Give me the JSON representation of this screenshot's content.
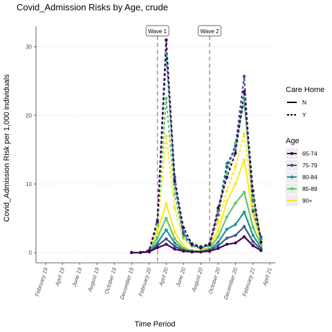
{
  "chart_data": {
    "type": "line",
    "title": "Covid_Admission Risks by Age, crude",
    "xlabel": "Time Period",
    "ylabel": "Covid_Admission Risk per 1,000 individuals",
    "x_tick_labels": [
      "February 19",
      "April 19",
      "June 19",
      "August 19",
      "October 19",
      "December 19",
      "February 20",
      "April 20",
      "June 20",
      "August 20",
      "October 20",
      "December 20",
      "February 21",
      "April 21"
    ],
    "y_ticks": [
      0,
      10,
      20,
      30
    ],
    "ylim": [
      -1.5,
      33
    ],
    "grid": true,
    "annotations": [
      {
        "label": "Wave 1",
        "x": "2020-03-01"
      },
      {
        "label": "Wave 2",
        "x": "2020-09-01"
      }
    ],
    "x": [
      "2019-12-01",
      "2020-01-01",
      "2020-02-01",
      "2020-03-01",
      "2020-04-01",
      "2020-05-01",
      "2020-06-01",
      "2020-07-01",
      "2020-08-01",
      "2020-09-01",
      "2020-10-01",
      "2020-11-01",
      "2020-12-01",
      "2021-01-01",
      "2021-02-01",
      "2021-03-01"
    ],
    "legend": {
      "care_home_title": "Care Home",
      "care_home_entries": [
        {
          "label": "N",
          "linetype": "solid"
        },
        {
          "label": "Y",
          "linetype": "dashed"
        }
      ],
      "age_title": "Age",
      "placement": "right"
    },
    "series": [
      {
        "name": "65-74",
        "care_home": "N",
        "color": "#440154",
        "values": [
          0.0,
          0.0,
          0.1,
          0.7,
          1.2,
          0.5,
          0.2,
          0.1,
          0.1,
          0.2,
          0.6,
          1.2,
          1.4,
          2.3,
          1.0,
          0.3
        ]
      },
      {
        "name": "75-79",
        "care_home": "N",
        "color": "#3b528b",
        "values": [
          0.0,
          0.0,
          0.1,
          1.0,
          2.0,
          0.9,
          0.3,
          0.1,
          0.1,
          0.3,
          1.0,
          2.1,
          2.5,
          3.8,
          1.6,
          0.5
        ]
      },
      {
        "name": "80-84",
        "care_home": "N",
        "color": "#21918c",
        "values": [
          0.0,
          0.0,
          0.1,
          1.4,
          3.3,
          1.4,
          0.4,
          0.2,
          0.1,
          0.4,
          1.5,
          3.4,
          4.1,
          5.9,
          2.5,
          0.7
        ]
      },
      {
        "name": "85-89",
        "care_home": "N",
        "color": "#5ec962",
        "values": [
          0.0,
          0.0,
          0.1,
          2.2,
          5.0,
          2.0,
          0.6,
          0.2,
          0.2,
          0.6,
          2.3,
          5.2,
          7.2,
          8.8,
          3.7,
          1.1
        ]
      },
      {
        "name": "90+",
        "care_home": "N",
        "color": "#fde725",
        "values": [
          0.0,
          0.0,
          0.2,
          3.1,
          7.1,
          3.0,
          0.9,
          0.3,
          0.2,
          0.8,
          3.2,
          7.5,
          10.0,
          13.5,
          5.5,
          1.6
        ]
      },
      {
        "name": "65-74",
        "care_home": "Y",
        "color": "#440154",
        "values": [
          0.0,
          0.0,
          0.3,
          4.6,
          31.0,
          10.4,
          3.6,
          1.2,
          0.7,
          1.2,
          6.5,
          11.0,
          14.5,
          23.5,
          9.0,
          1.5
        ]
      },
      {
        "name": "75-79",
        "care_home": "Y",
        "color": "#3b528b",
        "values": [
          0.0,
          0.0,
          0.3,
          4.4,
          31.0,
          11.0,
          2.8,
          1.3,
          0.9,
          1.3,
          5.5,
          12.5,
          15.5,
          25.7,
          6.0,
          2.3
        ]
      },
      {
        "name": "80-84",
        "care_home": "Y",
        "color": "#21918c",
        "values": [
          0.0,
          0.0,
          0.3,
          4.8,
          29.0,
          10.0,
          2.6,
          1.1,
          0.7,
          1.1,
          6.0,
          13.0,
          15.0,
          22.5,
          7.5,
          2.0
        ]
      },
      {
        "name": "85-89",
        "care_home": "Y",
        "color": "#5ec962",
        "values": [
          0.0,
          0.0,
          0.3,
          4.0,
          22.5,
          8.5,
          2.2,
          1.0,
          0.6,
          1.0,
          5.5,
          11.5,
          16.0,
          22.0,
          8.0,
          1.8
        ]
      },
      {
        "name": "90+",
        "care_home": "Y",
        "color": "#fde725",
        "values": [
          0.0,
          0.0,
          0.3,
          3.5,
          17.0,
          6.5,
          2.0,
          0.9,
          0.5,
          0.9,
          4.5,
          9.0,
          12.5,
          17.3,
          7.0,
          1.7
        ]
      }
    ]
  }
}
